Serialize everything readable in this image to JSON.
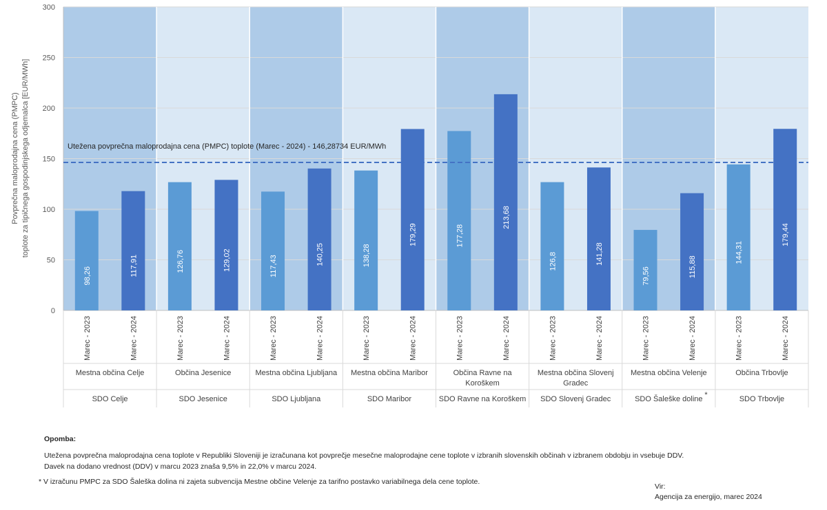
{
  "chart_data": {
    "type": "bar",
    "title": "",
    "ylabel_line1": "Povprečna maloprodajna cena (PMPC)",
    "ylabel_line2": "toplote za tipičnega gospodinjskega odjemalca  [EUR/MWh]",
    "ylim": [
      0,
      300
    ],
    "yticks": [
      "0",
      "50",
      "100",
      "150",
      "200",
      "250",
      "300"
    ],
    "grid": true,
    "reference_line": {
      "value": 146.28734,
      "label": "Utežena povprečna maloprodajna cena (PMPC) toplote (Marec - 2024) - 146,28734  EUR/MWh",
      "color": "#4472C4"
    },
    "colors": {
      "2023": "#5B9BD5",
      "2024": "#4472C4",
      "band_dark": "#AECBE8",
      "band_light": "#DAE8F5"
    },
    "series_labels": [
      "Marec - 2023",
      "Marec - 2024"
    ],
    "groups": [
      {
        "municipality": "Mestna občina Celje",
        "sdo": "SDO Celje",
        "values": [
          98.26,
          117.91
        ],
        "value_labels": [
          "98,26",
          "117,91"
        ]
      },
      {
        "municipality": "Občina Jesenice",
        "sdo": "SDO Jesenice",
        "values": [
          126.76,
          129.02
        ],
        "value_labels": [
          "126,76",
          "129,02"
        ]
      },
      {
        "municipality": "Mestna občina Ljubljana",
        "sdo": "SDO Ljubljana",
        "values": [
          117.43,
          140.25
        ],
        "value_labels": [
          "117,43",
          "140,25"
        ]
      },
      {
        "municipality": "Mestna občina Maribor",
        "sdo": "SDO Maribor",
        "values": [
          138.28,
          179.29
        ],
        "value_labels": [
          "138,28",
          "179,29"
        ]
      },
      {
        "municipality": "Občina Ravne na Koroškem",
        "sdo": "SDO Ravne na Koroškem",
        "values": [
          177.28,
          213.68
        ],
        "value_labels": [
          "177,28",
          "213,68"
        ]
      },
      {
        "municipality": "Mestna občina Slovenj Gradec",
        "sdo": "SDO Slovenj Gradec",
        "values": [
          126.8,
          141.28
        ],
        "value_labels": [
          "126,8",
          "141,28"
        ]
      },
      {
        "municipality": "Mestna občina Velenje",
        "sdo": "SDO Šaleške doline",
        "sdo_mark": "*",
        "values": [
          79.56,
          115.88
        ],
        "value_labels": [
          "79,56",
          "115,88"
        ]
      },
      {
        "municipality": "Občina Trbovlje",
        "sdo": "SDO Trbovlje",
        "values": [
          144.31,
          179.44
        ],
        "value_labels": [
          "144,31",
          "179,44"
        ]
      }
    ]
  },
  "notes": {
    "title": "Opomba:",
    "line1": "Utežena povprečna maloprodajna cena toplote v Republiki Sloveniji je izračunana kot povprečje mesečne maloprodajne cene toplote v izbranih slovenskih občinah v izbranem obdobju in vsebuje DDV.",
    "line2": "Davek na dodano vrednost (DDV) v marcu 2023 znaša 9,5% in 22,0% v marcu 2024.",
    "line3": "* V izračunu PMPC za SDO Šaleška dolina ni zajeta subvencija Mestne občine Velenje za tarifno postavko variabilnega dela cene toplote."
  },
  "source": {
    "label": "Vir:",
    "text": "Agencija za energijo, marec 2024"
  }
}
